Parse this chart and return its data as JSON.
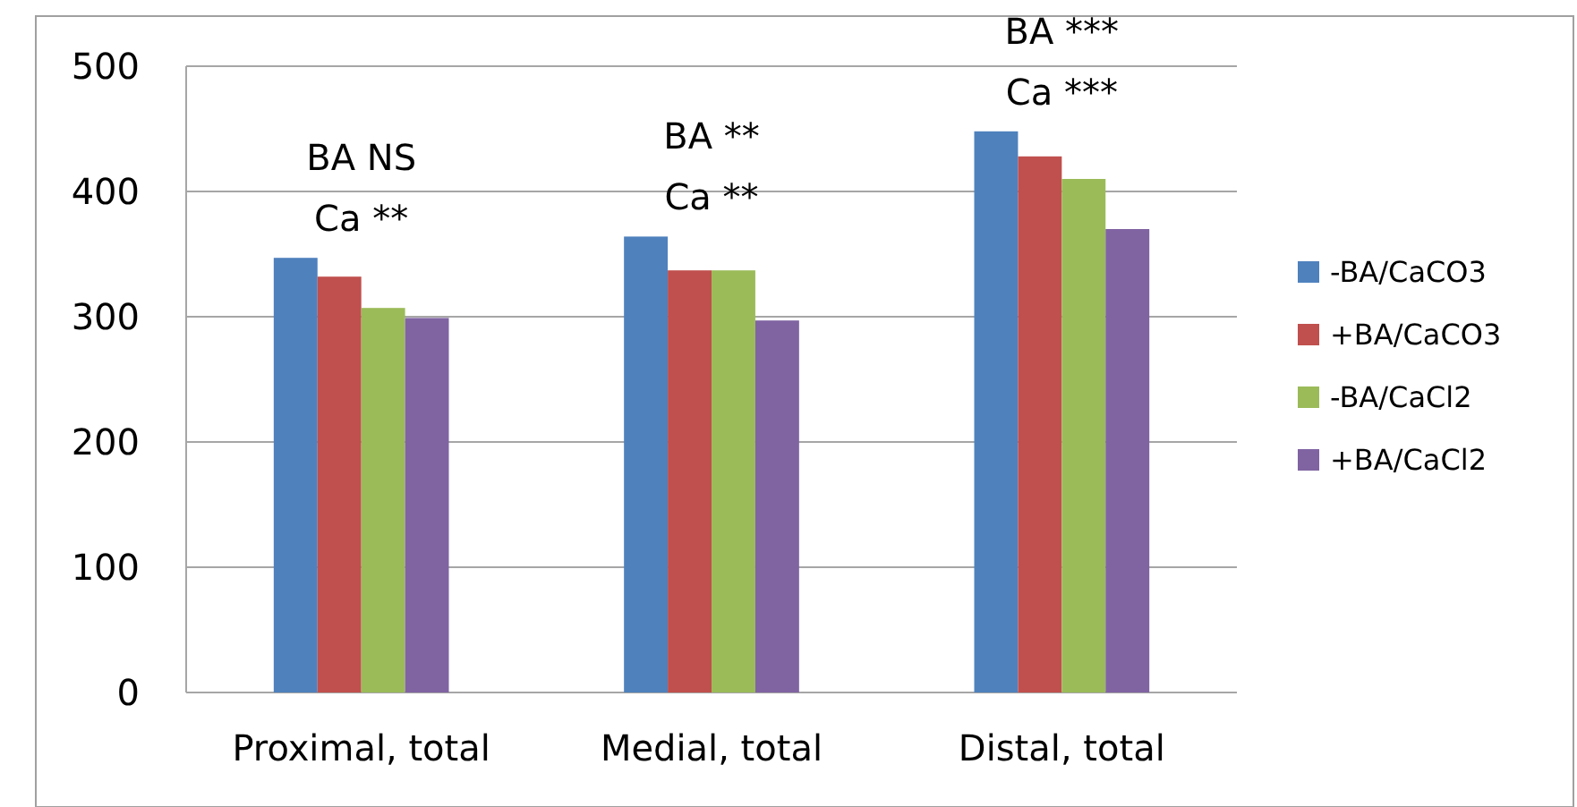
{
  "chart_data": {
    "type": "bar",
    "categories": [
      "Proximal, total",
      "Medial, total",
      "Distal, total"
    ],
    "series": [
      {
        "name": "-BA/CaCO3",
        "color": "#4f81bd",
        "values": [
          347,
          364,
          448
        ]
      },
      {
        "name": "+BA/CaCO3",
        "color": "#c0504d",
        "values": [
          332,
          337,
          428
        ]
      },
      {
        "name": "-BA/CaCl2",
        "color": "#9bbb59",
        "values": [
          307,
          337,
          410
        ]
      },
      {
        "name": "+BA/CaCl2",
        "color": "#8064a2",
        "values": [
          299,
          297,
          370
        ]
      }
    ],
    "ylim": [
      0,
      500
    ],
    "yticks": [
      0,
      100,
      200,
      300,
      400,
      500
    ],
    "grid": "y",
    "legend": "right",
    "annotations": [
      "BA NS",
      "Ca **",
      "BA **",
      "Ca **",
      "BA ***",
      "Ca ***"
    ]
  }
}
